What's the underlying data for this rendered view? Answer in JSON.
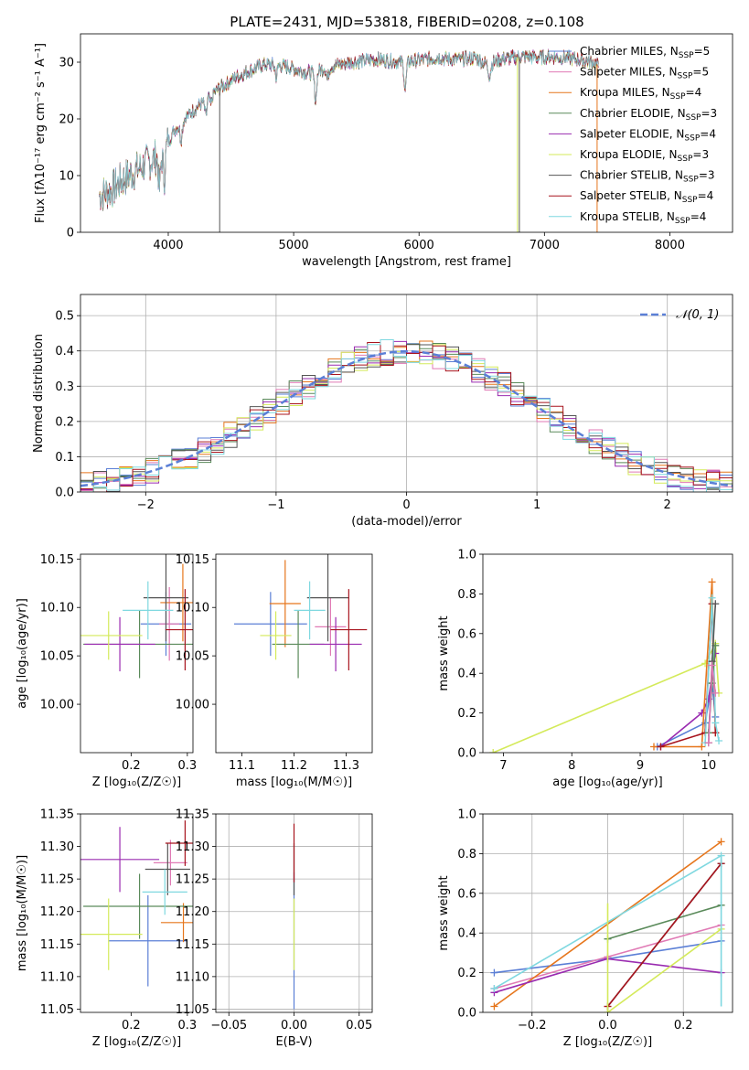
{
  "figure": {
    "title": "PLATE=2431, MJD=53818, FIBERID=0208, z=0.108"
  },
  "colors": {
    "Chabrier MILES": "#5b7fd6",
    "Salpeter MILES": "#e07ab5",
    "Kroupa MILES": "#e6761c",
    "Chabrier ELODIE": "#5a8a5a",
    "Salpeter ELODIE": "#9a2bb0",
    "Kroupa ELODIE": "#d4ea5a",
    "Chabrier STELIB": "#555555",
    "Salpeter STELIB": "#a8141e",
    "Kroupa STELIB": "#7fd8e0"
  },
  "chart_data": [
    {
      "id": "spectrum",
      "type": "line",
      "title": "PLATE=2431, MJD=53818, FIBERID=0208, z=0.108",
      "xlabel": "wavelength [Angstrom, rest frame]",
      "ylabel": "Flux [fλ10⁻¹⁷ erg cm⁻² s⁻¹ A⁻¹]",
      "xlim": [
        3300,
        8500
      ],
      "ylim": [
        0,
        35
      ],
      "xticks": [
        4000,
        5000,
        6000,
        7000,
        8000
      ],
      "yticks": [
        0,
        10,
        20,
        30
      ],
      "grid": false,
      "legend": "upper right",
      "legend_entries": [
        "Chabrier MILES, N_SSP=5",
        "Salpeter MILES, N_SSP=5",
        "Kroupa MILES, N_SSP=4",
        "Chabrier ELODIE, N_SSP=3",
        "Salpeter ELODIE, N_SSP=4",
        "Kroupa ELODIE, N_SSP=3",
        "Chabrier STELIB, N_SSP=3",
        "Salpeter STELIB, N_SSP=4",
        "Kroupa STELIB, N_SSP=4"
      ],
      "legend_names": [
        "Chabrier MILES",
        "Salpeter MILES",
        "Kroupa MILES",
        "Chabrier ELODIE",
        "Salpeter ELODIE",
        "Kroupa ELODIE",
        "Chabrier STELIB",
        "Salpeter STELIB",
        "Kroupa STELIB"
      ],
      "legend_nssp": [
        5,
        5,
        4,
        3,
        4,
        3,
        3,
        4,
        4
      ],
      "continuum": {
        "x": [
          3450,
          3550,
          3650,
          3750,
          3850,
          3950,
          4050,
          4150,
          4250,
          4350,
          4450,
          4550,
          4650,
          4750,
          4850,
          4950,
          5050,
          5150,
          5250,
          5350,
          5450,
          5550,
          5650,
          5750,
          5850,
          5950,
          6050,
          6150,
          6250,
          6350,
          6450,
          6550,
          6650,
          6750,
          6850,
          6950,
          7050,
          7150,
          7250,
          7350,
          7430
        ],
        "y": [
          6.5,
          7.5,
          9.5,
          11,
          12.5,
          14,
          18,
          20.5,
          22.5,
          24.5,
          26,
          27.5,
          28.5,
          29.5,
          29.5,
          29.2,
          28.5,
          28,
          29,
          29.5,
          30,
          30.3,
          30.5,
          30.3,
          30,
          30.2,
          30.5,
          30.8,
          30.5,
          30.5,
          30.8,
          29.5,
          30.5,
          30.8,
          31,
          30.8,
          31,
          30.8,
          30.5,
          30.2,
          29.5
        ]
      },
      "absorption_dips": [
        {
          "x": 3930,
          "depth": 6
        },
        {
          "x": 3968,
          "depth": 5
        },
        {
          "x": 4102,
          "depth": 3
        },
        {
          "x": 4300,
          "depth": 3
        },
        {
          "x": 4340,
          "depth": 2
        },
        {
          "x": 4861,
          "depth": 2
        },
        {
          "x": 5175,
          "depth": 5
        },
        {
          "x": 5270,
          "depth": 2
        },
        {
          "x": 5890,
          "depth": 5
        },
        {
          "x": 6563,
          "depth": 2
        }
      ],
      "bad_pixels": [
        {
          "x": 4410,
          "series": "Chabrier STELIB"
        },
        {
          "x": 6785,
          "series": "Kroupa ELODIE"
        },
        {
          "x": 6800,
          "series": "Chabrier STELIB"
        },
        {
          "x": 7420,
          "series": "Kroupa MILES"
        }
      ]
    },
    {
      "id": "residuals",
      "type": "histogram",
      "xlabel": "(data-model)/error",
      "ylabel": "Normed distribution",
      "xlim": [
        -2.5,
        2.5
      ],
      "ylim": [
        0,
        0.56
      ],
      "xticks": [
        -2,
        -1,
        0,
        1,
        2
      ],
      "yticks": [
        0.0,
        0.1,
        0.2,
        0.3,
        0.4,
        0.5
      ],
      "grid": true,
      "legend": "upper right",
      "legend_entries": [
        "𝒩(0, 1)"
      ],
      "bin_width": 0.1,
      "reference_curve": "normal(0,1)"
    },
    {
      "id": "age_vs_Z",
      "type": "errorbar",
      "xlabel": "Z [log₁₀(Z/Z☉)]",
      "ylabel": "age  [log₁₀(age/yr)]",
      "xlim": [
        0.11,
        0.31
      ],
      "ylim": [
        9.95,
        10.155
      ],
      "xticks": [
        0.2,
        0.3
      ],
      "yticks": [
        10.0,
        10.05,
        10.1,
        10.15
      ],
      "grid": false,
      "points": [
        {
          "series": "Chabrier MILES",
          "x": 0.262,
          "xerr": 0.045,
          "y": 10.083,
          "yerr": 0.033
        },
        {
          "series": "Salpeter MILES",
          "x": 0.268,
          "xerr": 0.018,
          "y": 10.083,
          "yerr": 0.038
        },
        {
          "series": "Kroupa MILES",
          "x": 0.292,
          "xerr": 0.04,
          "y": 10.105,
          "yerr": 0.04
        },
        {
          "series": "Chabrier ELODIE",
          "x": 0.215,
          "xerr": 0.1,
          "y": 10.062,
          "yerr": 0.035
        },
        {
          "series": "Salpeter ELODIE",
          "x": 0.18,
          "xerr": 0.063,
          "y": 10.062,
          "yerr": 0.028
        },
        {
          "series": "Kroupa ELODIE",
          "x": 0.16,
          "xerr": 0.06,
          "y": 10.071,
          "yerr": 0.025
        },
        {
          "series": "Chabrier STELIB",
          "x": 0.262,
          "xerr": 0.04,
          "y": 10.11,
          "yerr": 0.045
        },
        {
          "series": "Salpeter STELIB",
          "x": 0.296,
          "xerr": 0.035,
          "y": 10.077,
          "yerr": 0.042
        },
        {
          "series": "Kroupa STELIB",
          "x": 0.23,
          "xerr": 0.045,
          "y": 10.097,
          "yerr": 0.03
        }
      ]
    },
    {
      "id": "age_vs_mass",
      "type": "errorbar",
      "xlabel": "mass [log₁₀(M/M☉)]",
      "ylabel": "",
      "xlim": [
        11.05,
        11.35
      ],
      "ylim": [
        9.95,
        10.155
      ],
      "xticks": [
        11.1,
        11.2,
        11.3
      ],
      "yticks": [
        10.0,
        10.05,
        10.1,
        10.15
      ],
      "grid": false,
      "points": [
        {
          "series": "Chabrier MILES",
          "x": 11.155,
          "xerr": 0.07,
          "y": 10.083,
          "yerr": 0.033
        },
        {
          "series": "Salpeter MILES",
          "x": 11.27,
          "xerr": 0.03,
          "y": 10.08,
          "yerr": 0.03
        },
        {
          "series": "Kroupa MILES",
          "x": 11.183,
          "xerr": 0.03,
          "y": 10.104,
          "yerr": 0.045
        },
        {
          "series": "Chabrier ELODIE",
          "x": 11.208,
          "xerr": 0.05,
          "y": 10.062,
          "yerr": 0.035
        },
        {
          "series": "Salpeter ELODIE",
          "x": 11.28,
          "xerr": 0.05,
          "y": 10.062,
          "yerr": 0.028
        },
        {
          "series": "Kroupa ELODIE",
          "x": 11.165,
          "xerr": 0.03,
          "y": 10.071,
          "yerr": 0.025
        },
        {
          "series": "Chabrier STELIB",
          "x": 11.265,
          "xerr": 0.04,
          "y": 10.11,
          "yerr": 0.045
        },
        {
          "series": "Salpeter STELIB",
          "x": 11.305,
          "xerr": 0.035,
          "y": 10.077,
          "yerr": 0.042
        },
        {
          "series": "Kroupa STELIB",
          "x": 11.23,
          "xerr": 0.03,
          "y": 10.097,
          "yerr": 0.03
        }
      ]
    },
    {
      "id": "weight_vs_age",
      "type": "line",
      "xlabel": "age  [log₁₀(age/yr)]",
      "ylabel": "mass weight",
      "xlim": [
        6.7,
        10.35
      ],
      "ylim": [
        0,
        1.0
      ],
      "xticks": [
        7,
        8,
        9,
        10
      ],
      "yticks": [
        0.0,
        0.2,
        0.4,
        0.6,
        0.8,
        1.0
      ],
      "grid": false,
      "series": [
        {
          "series": "Kroupa ELODIE",
          "x": [
            6.85,
            9.95,
            10.1,
            10.15
          ],
          "y": [
            0.0,
            0.45,
            0.55,
            0.3
          ]
        },
        {
          "series": "Chabrier MILES",
          "x": [
            9.25,
            9.95,
            10.05,
            10.1
          ],
          "y": [
            0.03,
            0.15,
            0.35,
            0.18
          ]
        },
        {
          "series": "Salpeter ELODIE",
          "x": [
            9.3,
            9.9,
            10.0,
            10.1
          ],
          "y": [
            0.03,
            0.2,
            0.27,
            0.5
          ]
        },
        {
          "series": "Kroupa MILES",
          "x": [
            9.2,
            9.9,
            10.05,
            10.1
          ],
          "y": [
            0.03,
            0.03,
            0.86,
            0.1
          ]
        },
        {
          "series": "Salpeter STELIB",
          "x": [
            9.3,
            9.95,
            10.05,
            10.1
          ],
          "y": [
            0.03,
            0.1,
            0.75,
            0.1
          ]
        },
        {
          "series": "Kroupa STELIB",
          "x": [
            9.95,
            10.05,
            10.1,
            10.15
          ],
          "y": [
            0.05,
            0.78,
            0.15,
            0.06
          ]
        },
        {
          "series": "Chabrier ELODIE",
          "x": [
            10.0,
            10.05,
            10.1
          ],
          "y": [
            0.1,
            0.35,
            0.54
          ]
        },
        {
          "series": "Chabrier STELIB",
          "x": [
            10.0,
            10.05,
            10.1
          ],
          "y": [
            0.05,
            0.46,
            0.75
          ]
        },
        {
          "series": "Salpeter MILES",
          "x": [
            10.0,
            10.05,
            10.1
          ],
          "y": [
            0.05,
            0.44,
            0.3
          ]
        }
      ]
    },
    {
      "id": "mass_vs_Z",
      "type": "errorbar",
      "xlabel": "Z [log₁₀(Z/Z☉)]",
      "ylabel": "mass [log₁₀(M/M☉)]",
      "xlim": [
        0.11,
        0.31
      ],
      "ylim": [
        11.045,
        11.35
      ],
      "xticks": [
        0.2,
        0.3
      ],
      "yticks": [
        11.05,
        11.1,
        11.15,
        11.2,
        11.25,
        11.3,
        11.35
      ],
      "grid": false,
      "points": [
        {
          "series": "Chabrier MILES",
          "x": 0.23,
          "xerr": 0.07,
          "y": 11.155,
          "yerr": 0.07
        },
        {
          "series": "Salpeter MILES",
          "x": 0.27,
          "xerr": 0.03,
          "y": 11.275,
          "yerr": 0.035
        },
        {
          "series": "Kroupa MILES",
          "x": 0.293,
          "xerr": 0.04,
          "y": 11.183,
          "yerr": 0.03
        },
        {
          "series": "Chabrier ELODIE",
          "x": 0.215,
          "xerr": 0.1,
          "y": 11.208,
          "yerr": 0.05
        },
        {
          "series": "Salpeter ELODIE",
          "x": 0.18,
          "xerr": 0.07,
          "y": 11.28,
          "yerr": 0.05
        },
        {
          "series": "Kroupa ELODIE",
          "x": 0.16,
          "xerr": 0.06,
          "y": 11.165,
          "yerr": 0.055
        },
        {
          "series": "Chabrier STELIB",
          "x": 0.265,
          "xerr": 0.04,
          "y": 11.265,
          "yerr": 0.04
        },
        {
          "series": "Salpeter STELIB",
          "x": 0.296,
          "xerr": 0.035,
          "y": 11.305,
          "yerr": 0.035
        },
        {
          "series": "Kroupa STELIB",
          "x": 0.26,
          "xerr": 0.04,
          "y": 11.23,
          "yerr": 0.035
        }
      ]
    },
    {
      "id": "mass_vs_ebv",
      "type": "errorbar",
      "xlabel": "E(B-V)",
      "ylabel": "",
      "xlim": [
        -0.06,
        0.06
      ],
      "ylim": [
        11.045,
        11.35
      ],
      "xticks": [
        -0.05,
        0.0,
        0.05
      ],
      "yticks": [
        11.05,
        11.1,
        11.15,
        11.2,
        11.25,
        11.3,
        11.35
      ],
      "grid": true,
      "points": [
        {
          "series": "Chabrier MILES",
          "x": 0.0,
          "xerr": 0.0,
          "y": 11.155,
          "yerr": 0.105
        },
        {
          "series": "Kroupa ELODIE",
          "x": 0.0,
          "xerr": 0.0,
          "y": 11.165,
          "yerr": 0.055
        },
        {
          "series": "Chabrier STELIB",
          "x": 0.0,
          "xerr": 0.0,
          "y": 11.265,
          "yerr": 0.04
        },
        {
          "series": "Salpeter STELIB",
          "x": 0.0,
          "xerr": 0.0,
          "y": 11.29,
          "yerr": 0.045
        }
      ]
    },
    {
      "id": "weight_vs_Z",
      "type": "line",
      "xlabel": "Z [log₁₀(Z/Z☉)]",
      "ylabel": "mass weight",
      "xlim": [
        -0.33,
        0.33
      ],
      "ylim": [
        0,
        1.0
      ],
      "xticks": [
        -0.2,
        0.0,
        0.2
      ],
      "yticks": [
        0.0,
        0.2,
        0.4,
        0.6,
        0.8,
        1.0
      ],
      "grid": true,
      "series": [
        {
          "series": "Chabrier MILES",
          "x": [
            -0.3,
            0.0,
            0.3
          ],
          "y": [
            0.2,
            0.27,
            0.36
          ]
        },
        {
          "series": "Salpeter MILES",
          "x": [
            -0.3,
            0.0,
            0.3
          ],
          "y": [
            0.12,
            0.28,
            0.44
          ]
        },
        {
          "series": "Kroupa MILES",
          "x": [
            -0.3,
            0.3
          ],
          "y": [
            0.03,
            0.86
          ]
        },
        {
          "series": "Chabrier ELODIE",
          "x": [
            0.0,
            0.3
          ],
          "y": [
            0.37,
            0.54
          ]
        },
        {
          "series": "Salpeter ELODIE",
          "x": [
            -0.3,
            0.0,
            0.3
          ],
          "y": [
            0.1,
            0.27,
            0.2
          ]
        },
        {
          "series": "Kroupa ELODIE",
          "x": [
            0.0,
            0.3
          ],
          "y": [
            0.0,
            0.42
          ]
        },
        {
          "series": "Chabrier STELIB",
          "x": [
            0.0,
            0.3
          ],
          "y": [
            0.03,
            0.75
          ]
        },
        {
          "series": "Salpeter STELIB",
          "x": [
            0.0,
            0.3
          ],
          "y": [
            0.03,
            0.75
          ]
        },
        {
          "series": "Kroupa STELIB",
          "x": [
            -0.3,
            0.3
          ],
          "y": [
            0.12,
            0.79
          ]
        }
      ],
      "vertical_bars": [
        {
          "series": "Kroupa ELODIE",
          "x": 0.0,
          "y0": 0.0,
          "y1": 0.55
        },
        {
          "series": "Kroupa STELIB",
          "x": 0.3,
          "y0": 0.03,
          "y1": 0.79
        }
      ]
    }
  ]
}
